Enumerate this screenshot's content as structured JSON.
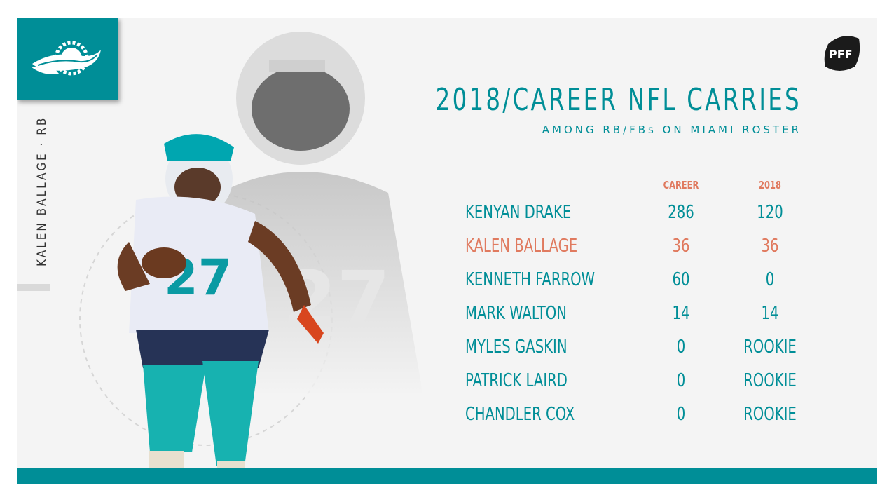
{
  "team": {
    "name": "Miami Dolphins",
    "logo": "dolphins-logo",
    "accent": "#008e97",
    "highlight": "#e07a5f"
  },
  "player_tag": "KALEN BALLAGE · RB",
  "brand": {
    "logo": "pff-logo",
    "text": "PFF"
  },
  "title": "2018/CAREER NFL CARRIES",
  "subtitle": "AMONG RB/FBs ON MIAMI ROSTER",
  "table": {
    "headers": {
      "career": "CAREER",
      "y2018": "2018"
    },
    "rows": [
      {
        "name": "KENYAN DRAKE",
        "career": "286",
        "y2018": "120",
        "highlight": false
      },
      {
        "name": "KALEN BALLAGE",
        "career": "36",
        "y2018": "36",
        "highlight": true
      },
      {
        "name": "KENNETH FARROW",
        "career": "60",
        "y2018": "0",
        "highlight": false
      },
      {
        "name": "MARK WALTON",
        "career": "14",
        "y2018": "14",
        "highlight": false
      },
      {
        "name": "MYLES GASKIN",
        "career": "0",
        "y2018": "ROOKIE",
        "highlight": false
      },
      {
        "name": "PATRICK LAIRD",
        "career": "0",
        "y2018": "ROOKIE",
        "highlight": false
      },
      {
        "name": "CHANDLER COX",
        "career": "0",
        "y2018": "ROOKIE",
        "highlight": false
      }
    ]
  }
}
